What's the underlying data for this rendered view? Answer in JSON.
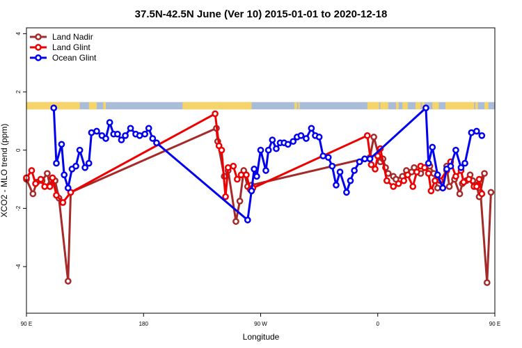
{
  "chart_data": {
    "type": "line",
    "title": "37.5N-42.5N June (Ver 10)   2015-01-01 to 2020-12-18",
    "xlabel": "Longitude",
    "ylabel": "XCO2 - MLO trend (ppm)",
    "xlim": [
      90,
      450
    ],
    "ylim": [
      -5.6,
      4.2
    ],
    "x_ticks": [
      {
        "value": 90,
        "label": "90 E"
      },
      {
        "value": 180,
        "label": "180"
      },
      {
        "value": 270,
        "label": "90 W"
      },
      {
        "value": 360,
        "label": "0"
      },
      {
        "value": 450,
        "label": "90 E"
      },
      {
        "value": 540,
        "label": "180"
      }
    ],
    "y_ticks": [
      {
        "value": -4,
        "label": "-4"
      },
      {
        "value": -2,
        "label": "-2"
      },
      {
        "value": 0,
        "label": "0"
      },
      {
        "value": 2,
        "label": "2"
      },
      {
        "value": 4,
        "label": "4"
      }
    ],
    "legend_position": "top-left",
    "grid": false,
    "land_ocean_strip": {
      "y_range": [
        1.4,
        1.65
      ],
      "land_color": "#f6d46a",
      "ocean_color": "#a9bcd8",
      "land_segments": [
        [
          90,
          131
        ],
        [
          138,
          144
        ],
        [
          149,
          151
        ],
        [
          210,
          263
        ],
        [
          296,
          298
        ],
        [
          299,
          300
        ],
        [
          352,
          361
        ],
        [
          362,
          368
        ],
        [
          374,
          376
        ],
        [
          379,
          383
        ],
        [
          389,
          393
        ],
        [
          394,
          396
        ],
        [
          402,
          407
        ],
        [
          412,
          434
        ],
        [
          435,
          437
        ],
        [
          442,
          445
        ],
        [
          467,
          486
        ],
        [
          487,
          489
        ],
        [
          492,
          494
        ],
        [
          496,
          519
        ],
        [
          524,
          539
        ]
      ]
    },
    "series": [
      {
        "name": "Land Nadir",
        "color": "#a52a2a",
        "points": [
          [
            90,
            -1.0
          ],
          [
            95,
            -1.5
          ],
          [
            98,
            -1.1
          ],
          [
            102,
            -1.05
          ],
          [
            106,
            -0.8
          ],
          [
            108,
            -1.2
          ],
          [
            112,
            -1.05
          ],
          [
            115,
            -1.65
          ],
          [
            122,
            -4.5
          ],
          [
            124,
            -1.45
          ],
          [
            236,
            0.75
          ],
          [
            237,
            0.3
          ],
          [
            242,
            -0.9
          ],
          [
            245,
            -0.7
          ],
          [
            251,
            -2.45
          ],
          [
            254,
            -1.75
          ],
          [
            257,
            -0.7
          ],
          [
            260,
            -1.25
          ],
          [
            263,
            -1.2
          ],
          [
            354,
            -0.25
          ],
          [
            357,
            0.45
          ],
          [
            362,
            -0.4
          ],
          [
            364,
            -0.3
          ],
          [
            366,
            -0.6
          ],
          [
            368,
            -0.8
          ],
          [
            372,
            -0.9
          ],
          [
            374,
            -1.0
          ],
          [
            379,
            -0.9
          ],
          [
            382,
            -0.7
          ],
          [
            386,
            -0.75
          ],
          [
            388,
            -0.6
          ],
          [
            393,
            -0.8
          ],
          [
            397,
            -0.6
          ],
          [
            400,
            -0.55
          ],
          [
            403,
            -0.8
          ],
          [
            406,
            -1.3
          ],
          [
            410,
            -1.3
          ],
          [
            413,
            -0.55
          ],
          [
            415,
            -1.25
          ],
          [
            419,
            -1.0
          ],
          [
            423,
            -1.5
          ],
          [
            425,
            -1.15
          ],
          [
            428,
            -1.05
          ],
          [
            431,
            -0.85
          ],
          [
            433,
            -1.05
          ],
          [
            436,
            -1.2
          ],
          [
            438,
            -1.6
          ],
          [
            442,
            -0.8
          ],
          [
            436,
            -1.2
          ],
          [
            438,
            -1.6
          ],
          [
            439,
            -1.45
          ],
          [
            444,
            -4.55
          ],
          [
            447,
            -1.45
          ]
        ]
      },
      {
        "name": "Land Glint",
        "color": "#ee0000",
        "points": [
          [
            90,
            -0.95
          ],
          [
            94,
            -0.7
          ],
          [
            97,
            -1.15
          ],
          [
            101,
            -1.0
          ],
          [
            104,
            -1.25
          ],
          [
            108,
            -1.25
          ],
          [
            110,
            -0.95
          ],
          [
            113,
            -1.55
          ],
          [
            118,
            -1.8
          ],
          [
            124,
            -1.45
          ],
          [
            235,
            1.25
          ],
          [
            238,
            0.15
          ],
          [
            240,
            0.0
          ],
          [
            243,
            -1.6
          ],
          [
            245,
            -0.6
          ],
          [
            249,
            -0.55
          ],
          [
            252,
            -1.0
          ],
          [
            255,
            -0.85
          ],
          [
            259,
            -0.85
          ],
          [
            262,
            -1.35
          ],
          [
            264,
            -1.3
          ],
          [
            352,
            0.5
          ],
          [
            355,
            -0.5
          ],
          [
            358,
            -0.65
          ],
          [
            360,
            -0.2
          ],
          [
            362,
            0.05
          ],
          [
            367,
            -1.05
          ],
          [
            372,
            -1.25
          ],
          [
            376,
            -1.15
          ],
          [
            380,
            -1.05
          ],
          [
            383,
            -0.85
          ],
          [
            387,
            -1.25
          ],
          [
            390,
            -0.75
          ],
          [
            393,
            -0.55
          ],
          [
            396,
            -0.6
          ],
          [
            399,
            -0.8
          ],
          [
            401,
            -1.4
          ],
          [
            404,
            -1.05
          ],
          [
            408,
            -1.05
          ],
          [
            413,
            -0.7
          ],
          [
            416,
            -0.4
          ],
          [
            420,
            -0.9
          ],
          [
            424,
            -0.7
          ],
          [
            426,
            -1.1
          ],
          [
            430,
            -1.0
          ],
          [
            434,
            -1.25
          ],
          [
            436,
            -1.25
          ],
          [
            438,
            -1.0
          ],
          [
            440,
            -1.5
          ]
        ]
      },
      {
        "name": "Ocean Glint",
        "color": "#0000ee",
        "points": [
          [
            111,
            1.45
          ],
          [
            113,
            -0.45
          ],
          [
            117,
            0.2
          ],
          [
            119,
            -0.85
          ],
          [
            122,
            -1.3
          ],
          [
            125,
            -0.65
          ],
          [
            128,
            -0.55
          ],
          [
            131,
            0.0
          ],
          [
            135,
            -0.6
          ],
          [
            138,
            -0.45
          ],
          [
            140,
            0.6
          ],
          [
            144,
            0.65
          ],
          [
            148,
            0.5
          ],
          [
            151,
            0.4
          ],
          [
            154,
            0.95
          ],
          [
            157,
            0.55
          ],
          [
            160,
            0.55
          ],
          [
            163,
            0.35
          ],
          [
            166,
            0.5
          ],
          [
            170,
            0.75
          ],
          [
            174,
            0.55
          ],
          [
            177,
            0.5
          ],
          [
            181,
            0.55
          ],
          [
            184,
            0.75
          ],
          [
            187,
            0.4
          ],
          [
            190,
            0.25
          ],
          [
            260,
            -2.4
          ],
          [
            263,
            -1.4
          ],
          [
            265,
            -0.65
          ],
          [
            267,
            -0.9
          ],
          [
            270,
            0.0
          ],
          [
            274,
            -0.7
          ],
          [
            276,
            0.0
          ],
          [
            279,
            0.35
          ],
          [
            282,
            0.05
          ],
          [
            285,
            0.25
          ],
          [
            288,
            0.25
          ],
          [
            291,
            0.2
          ],
          [
            295,
            0.3
          ],
          [
            298,
            0.45
          ],
          [
            301,
            0.5
          ],
          [
            305,
            0.4
          ],
          [
            309,
            0.75
          ],
          [
            312,
            0.5
          ],
          [
            315,
            0.45
          ],
          [
            318,
            -0.2
          ],
          [
            322,
            -0.25
          ],
          [
            325,
            -0.55
          ],
          [
            328,
            -1.2
          ],
          [
            331,
            -0.75
          ],
          [
            336,
            -1.45
          ],
          [
            339,
            -1.05
          ],
          [
            342,
            -0.7
          ],
          [
            346,
            -0.4
          ],
          [
            350,
            -0.3
          ],
          [
            354,
            -0.3
          ],
          [
            397,
            1.45
          ],
          [
            399,
            -0.45
          ],
          [
            402,
            0.1
          ],
          [
            406,
            -0.85
          ],
          [
            410,
            -1.3
          ],
          [
            413,
            -0.65
          ],
          [
            416,
            -0.55
          ],
          [
            420,
            0.0
          ],
          [
            424,
            -0.6
          ],
          [
            427,
            -0.45
          ],
          [
            432,
            0.6
          ],
          [
            436,
            0.65
          ],
          [
            440,
            0.5
          ]
        ]
      }
    ]
  }
}
